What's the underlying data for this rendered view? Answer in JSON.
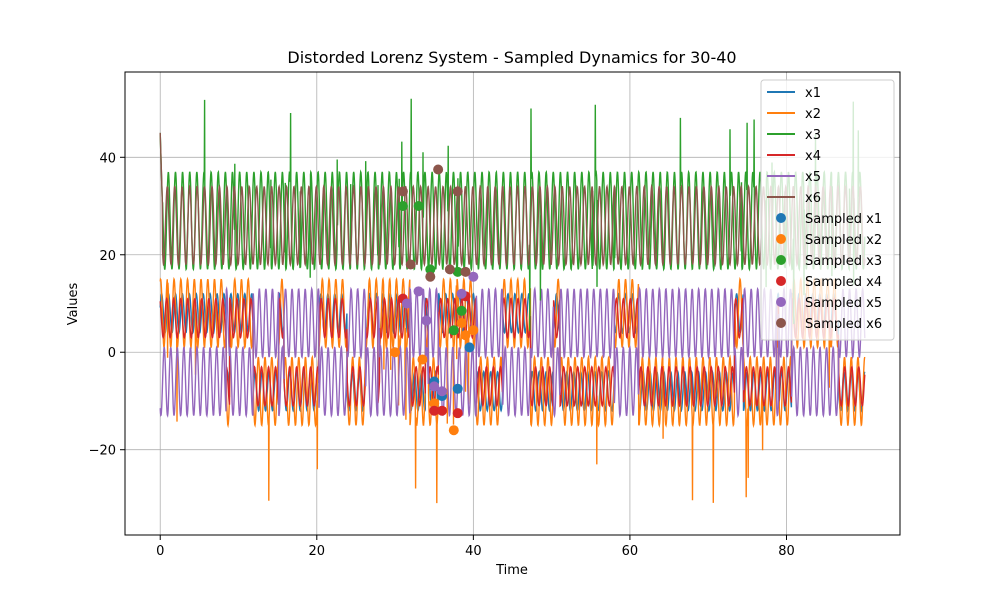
{
  "chart_data": {
    "type": "line",
    "title": "Distorded Lorenz System - Sampled Dynamics for 30-40",
    "xlabel": "Time",
    "ylabel": "Values",
    "xlim": [
      -4.5,
      94.5
    ],
    "ylim": [
      -37.5,
      57.5
    ],
    "xticks": [
      0,
      20,
      40,
      60,
      80
    ],
    "yticks": [
      -20,
      0,
      20,
      40
    ],
    "tick_labels_x": [
      "0",
      "20",
      "40",
      "60",
      "80"
    ],
    "tick_labels_y": [
      "−20",
      "0",
      "20",
      "40"
    ],
    "grid": true,
    "legend_position": "top-right",
    "x_range": [
      0,
      90
    ],
    "series": [
      {
        "name": "x1",
        "color": "#1f77b4",
        "kind": "line"
      },
      {
        "name": "x2",
        "color": "#ff7f0e",
        "kind": "line"
      },
      {
        "name": "x3",
        "color": "#2ca02c",
        "kind": "line"
      },
      {
        "name": "x4",
        "color": "#d62728",
        "kind": "line"
      },
      {
        "name": "x5",
        "color": "#9467bd",
        "kind": "line"
      },
      {
        "name": "x6",
        "color": "#8c564b",
        "kind": "line"
      }
    ],
    "sampled_series": [
      {
        "name": "Sampled x1",
        "color": "#1f77b4",
        "points": [
          [
            35.0,
            -6.0
          ],
          [
            36.0,
            -9.0
          ],
          [
            38.0,
            -7.5
          ],
          [
            39.5,
            1.0
          ]
        ]
      },
      {
        "name": "Sampled x2",
        "color": "#ff7f0e",
        "points": [
          [
            30.0,
            0.0
          ],
          [
            33.5,
            -1.5
          ],
          [
            35.0,
            -10.5
          ],
          [
            37.5,
            -16.0
          ],
          [
            38.5,
            6.0
          ],
          [
            39.0,
            3.5
          ],
          [
            40.0,
            4.5
          ]
        ]
      },
      {
        "name": "Sampled x3",
        "color": "#2ca02c",
        "points": [
          [
            31.0,
            30.0
          ],
          [
            33.0,
            30.0
          ],
          [
            34.5,
            17.0
          ],
          [
            37.5,
            4.5
          ],
          [
            38.0,
            16.5
          ],
          [
            38.5,
            8.5
          ]
        ]
      },
      {
        "name": "Sampled x4",
        "color": "#d62728",
        "points": [
          [
            31.0,
            11.0
          ],
          [
            35.0,
            -12.0
          ],
          [
            36.0,
            -12.0
          ],
          [
            38.0,
            -12.5
          ],
          [
            39.0,
            11.5
          ]
        ]
      },
      {
        "name": "Sampled x5",
        "color": "#9467bd",
        "points": [
          [
            31.5,
            10.0
          ],
          [
            33.0,
            12.5
          ],
          [
            34.0,
            6.5
          ],
          [
            35.0,
            -7.0
          ],
          [
            36.0,
            -8.0
          ],
          [
            38.5,
            12.0
          ],
          [
            40.0,
            15.5
          ]
        ]
      },
      {
        "name": "Sampled x6",
        "color": "#8c564b",
        "points": [
          [
            31.0,
            33.0
          ],
          [
            32.0,
            18.0
          ],
          [
            34.5,
            15.5
          ],
          [
            35.5,
            37.5
          ],
          [
            37.0,
            17.0
          ],
          [
            38.0,
            33.0
          ],
          [
            39.0,
            16.5
          ]
        ]
      }
    ]
  }
}
